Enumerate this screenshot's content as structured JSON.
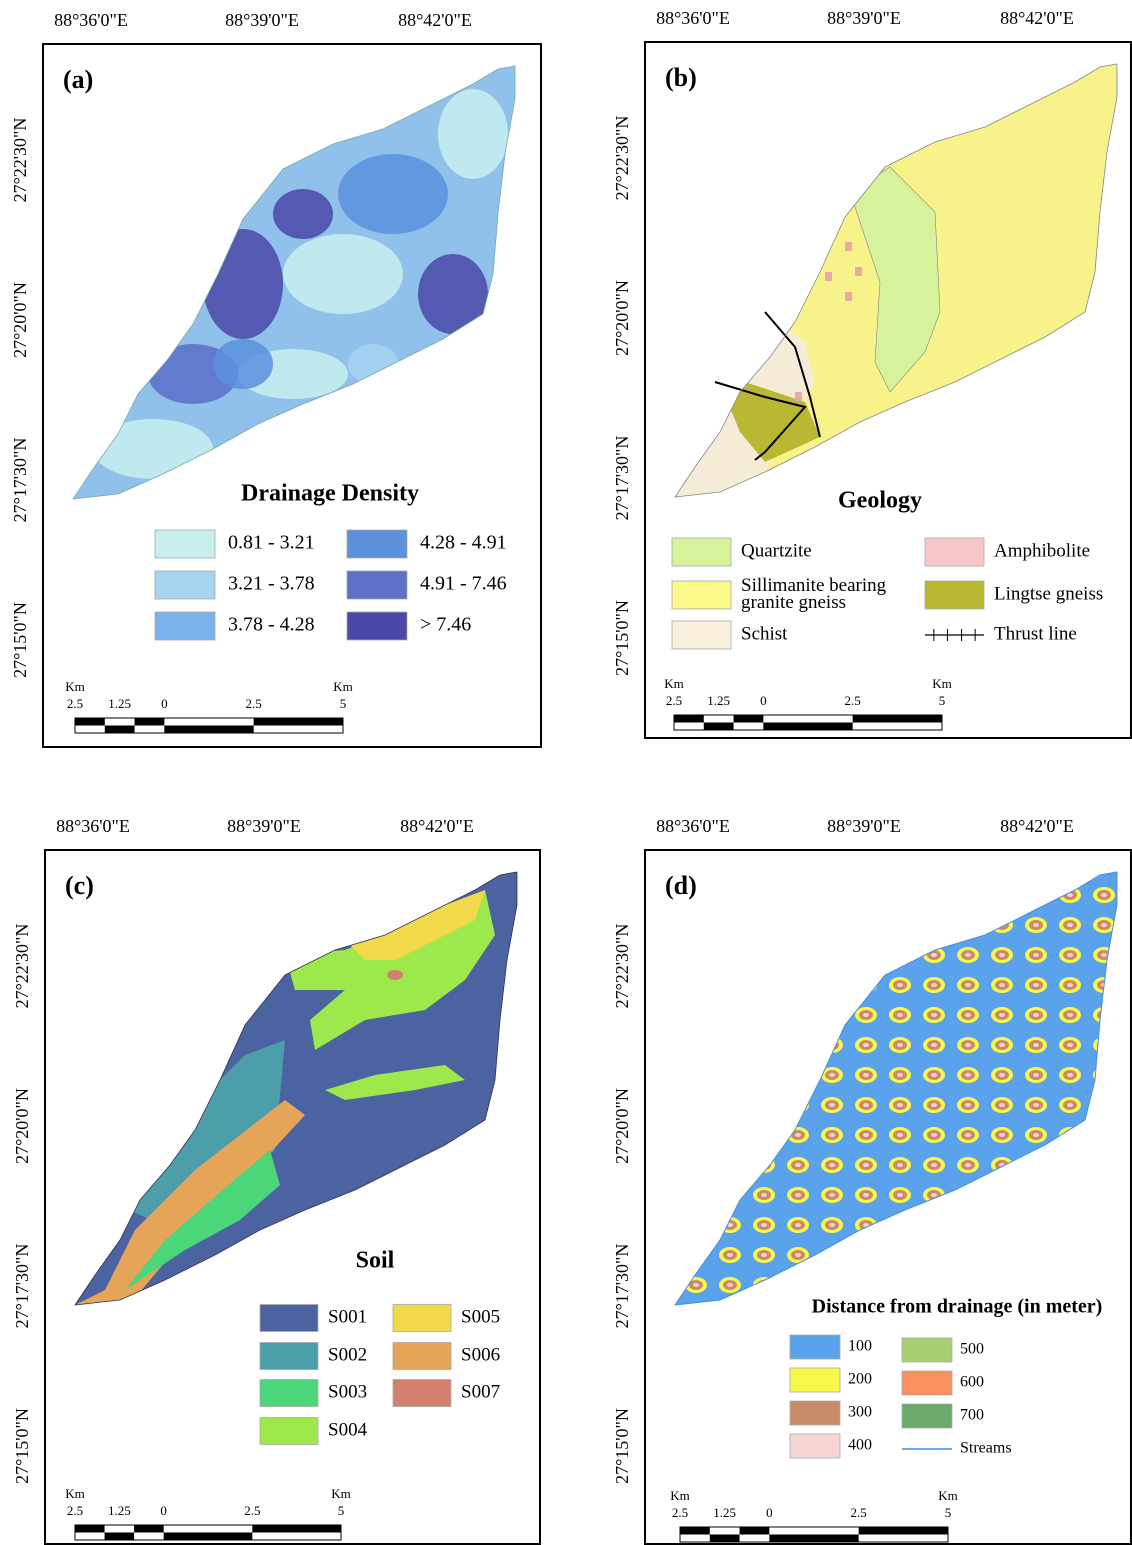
{
  "panels": [
    {
      "label": "(a)",
      "lon_labels": [
        "88°36'0\"E",
        "88°39'0\"E",
        "88°42'0\"E"
      ],
      "lat_labels": [
        "27°22'30\"N",
        "27°20'0\"N",
        "27°17'30\"N",
        "27°15'0\"N"
      ],
      "legend": {
        "title": "Drainage Density",
        "items": [
          {
            "label": "0.81 - 3.21",
            "color": "#c9eef0"
          },
          {
            "label": "3.21 - 3.78",
            "color": "#a6d3f0"
          },
          {
            "label": "3.78 - 4.28",
            "color": "#7cb2ea"
          },
          {
            "label": "4.28 - 4.91",
            "color": "#5b91dd"
          },
          {
            "label": "4.91 - 7.46",
            "color": "#5c6fc9"
          },
          {
            "label": "> 7.46",
            "color": "#4a47a8"
          }
        ]
      },
      "scale_bar": {
        "unit_left": "Km",
        "unit_right": "Km",
        "ticks": [
          "2.5",
          "1.25",
          "0",
          "2.5",
          "5"
        ]
      }
    },
    {
      "label": "(b)",
      "lon_labels": [
        "88°36'0\"E",
        "88°39'0\"E",
        "88°42'0\"E"
      ],
      "lat_labels": [
        "27°22'30\"N",
        "27°20'0\"N",
        "27°17'30\"N",
        "27°15'0\"N"
      ],
      "legend": {
        "title": "Geology",
        "items": [
          {
            "label": [
              "Quartzite"
            ],
            "color": "#d6f29a"
          },
          {
            "label": [
              "Sillimanite bearing",
              "granite gneiss"
            ],
            "color": "#fbfb8c"
          },
          {
            "label": [
              "Schist"
            ],
            "color": "#f8efdc"
          },
          {
            "label": [
              "Amphibolite"
            ],
            "color": "#f8c8c8"
          },
          {
            "label": [
              "Lingtse gneiss"
            ],
            "color": "#b8b832"
          },
          {
            "label": [
              "Thrust line"
            ],
            "line_color": "#000000"
          }
        ]
      },
      "scale_bar": {
        "unit_left": "Km",
        "unit_right": "Km",
        "ticks": [
          "2.5",
          "1.25",
          "0",
          "2.5",
          "5"
        ]
      }
    },
    {
      "label": "(c)",
      "lon_labels": [
        "88°36'0\"E",
        "88°39'0\"E",
        "88°42'0\"E"
      ],
      "lat_labels": [
        "27°22'30\"N",
        "27°20'0\"N",
        "27°17'30\"N",
        "27°15'0\"N"
      ],
      "legend": {
        "title": "Soil",
        "items": [
          {
            "label": "S001",
            "color": "#4b63a0"
          },
          {
            "label": "S002",
            "color": "#4c9eab"
          },
          {
            "label": "S003",
            "color": "#4cd67a"
          },
          {
            "label": "S004",
            "color": "#9de84a"
          },
          {
            "label": "S005",
            "color": "#f2d94a"
          },
          {
            "label": "S006",
            "color": "#e6a458"
          },
          {
            "label": "S007",
            "color": "#d4806e"
          }
        ]
      },
      "scale_bar": {
        "unit_left": "Km",
        "unit_right": "Km",
        "ticks": [
          "2.5",
          "1.25",
          "0",
          "2.5",
          "5"
        ]
      }
    },
    {
      "label": "(d)",
      "lon_labels": [
        "88°36'0\"E",
        "88°39'0\"E",
        "88°42'0\"E"
      ],
      "lat_labels": [
        "27°22'30\"N",
        "27°20'0\"N",
        "27°17'30\"N",
        "27°15'0\"N"
      ],
      "legend": {
        "title": "Distance from drainage (in meter)",
        "items": [
          {
            "label": "100",
            "color": "#5aa3ec"
          },
          {
            "label": "200",
            "color": "#f8f84a"
          },
          {
            "label": "300",
            "color": "#c98a68"
          },
          {
            "label": "400",
            "color": "#f8d4d4"
          },
          {
            "label": "500",
            "color": "#a8d070"
          },
          {
            "label": "600",
            "color": "#f89060"
          },
          {
            "label": "700",
            "color": "#6aaa6a"
          },
          {
            "label": "Streams",
            "line_color": "#66aaee"
          }
        ]
      },
      "scale_bar": {
        "unit_left": "Km",
        "unit_right": "Km",
        "ticks": [
          "2.5",
          "1.25",
          "0",
          "2.5",
          "5"
        ]
      }
    }
  ]
}
